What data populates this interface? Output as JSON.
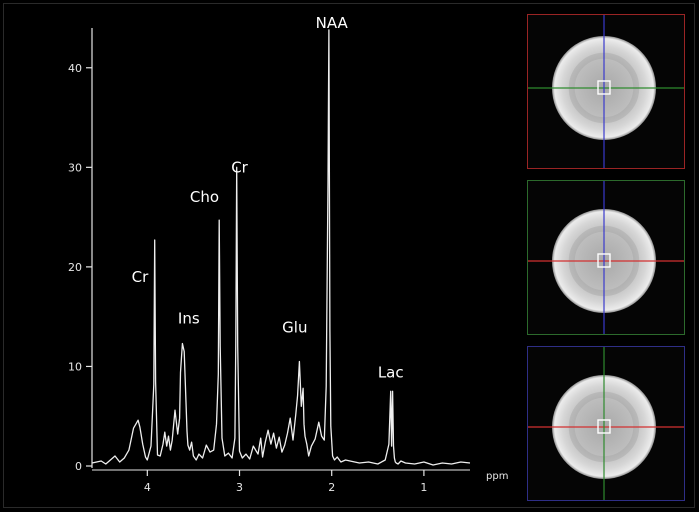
{
  "spectrum": {
    "x_unit": "ppm",
    "chart_data": {
      "type": "line",
      "xlabel": "ppm",
      "ylabel": "",
      "xlim": [
        4.6,
        0.5
      ],
      "ylim": [
        0,
        45
      ],
      "x_reversed": true,
      "x_ticks": [
        4,
        3,
        2,
        1
      ],
      "y_ticks": [
        0,
        10,
        20,
        30,
        40
      ],
      "grid": false,
      "series": [
        {
          "x": [
            4.6,
            4.5,
            4.45,
            4.4,
            4.35,
            4.3,
            4.25,
            4.2,
            4.15,
            4.1,
            4.08,
            4.05,
            4.02,
            4.0,
            3.96,
            3.93,
            3.92,
            3.91,
            3.89,
            3.86,
            3.83,
            3.81,
            3.79,
            3.77,
            3.75,
            3.73,
            3.7,
            3.67,
            3.65,
            3.64,
            3.62,
            3.6,
            3.58,
            3.57,
            3.56,
            3.54,
            3.52,
            3.5,
            3.47,
            3.44,
            3.4,
            3.36,
            3.32,
            3.28,
            3.25,
            3.23,
            3.22,
            3.21,
            3.19,
            3.16,
            3.12,
            3.08,
            3.05,
            3.04,
            3.03,
            3.02,
            3.0,
            2.97,
            2.93,
            2.89,
            2.85,
            2.8,
            2.77,
            2.75,
            2.72,
            2.69,
            2.66,
            2.63,
            2.6,
            2.57,
            2.54,
            2.51,
            2.48,
            2.45,
            2.42,
            2.39,
            2.37,
            2.35,
            2.33,
            2.31,
            2.3,
            2.29,
            2.27,
            2.25,
            2.22,
            2.18,
            2.14,
            2.11,
            2.08,
            2.06,
            2.04,
            2.03,
            2.02,
            2.01,
            1.99,
            1.97,
            1.94,
            1.9,
            1.85,
            1.8,
            1.7,
            1.6,
            1.5,
            1.42,
            1.38,
            1.36,
            1.35,
            1.34,
            1.33,
            1.32,
            1.31,
            1.3,
            1.28,
            1.25,
            1.2,
            1.1,
            1.0,
            0.9,
            0.8,
            0.7,
            0.6,
            0.5
          ],
          "y": [
            0.3,
            0.5,
            0.2,
            0.6,
            1.0,
            0.4,
            0.8,
            1.6,
            3.8,
            4.6,
            3.9,
            2.2,
            0.9,
            0.6,
            2.0,
            8.2,
            22.7,
            8.5,
            1.1,
            1.0,
            2.2,
            3.4,
            2.0,
            3.0,
            1.6,
            2.6,
            5.6,
            3.2,
            4.8,
            9.4,
            12.3,
            11.5,
            6.4,
            3.5,
            2.1,
            1.6,
            2.4,
            1.0,
            0.6,
            1.2,
            0.8,
            2.1,
            1.4,
            1.6,
            4.2,
            9.2,
            24.7,
            12.0,
            2.8,
            1.0,
            1.3,
            0.8,
            2.8,
            12.4,
            30.0,
            12.0,
            1.5,
            0.8,
            1.2,
            0.7,
            2.0,
            1.2,
            2.8,
            0.9,
            2.4,
            3.6,
            2.2,
            3.3,
            1.8,
            2.9,
            1.4,
            2.1,
            3.3,
            4.8,
            2.6,
            5.2,
            7.1,
            10.5,
            6.0,
            7.8,
            4.2,
            3.0,
            2.2,
            1.0,
            2.0,
            2.7,
            4.4,
            3.0,
            2.6,
            8.0,
            28.5,
            43.8,
            13.6,
            4.0,
            1.0,
            0.6,
            0.9,
            0.4,
            0.6,
            0.5,
            0.3,
            0.4,
            0.2,
            0.6,
            2.2,
            7.5,
            2.0,
            7.5,
            2.0,
            0.8,
            0.4,
            0.3,
            0.2,
            0.5,
            0.3,
            0.2,
            0.4,
            0.1,
            0.3,
            0.2,
            0.4,
            0.3
          ]
        }
      ],
      "annotations": [
        {
          "text": "NAA",
          "x": 2.0,
          "y": 44
        },
        {
          "text": "Cr",
          "x": 3.0,
          "y": 29.5
        },
        {
          "text": "Cho",
          "x": 3.38,
          "y": 26.5
        },
        {
          "text": "Cr",
          "x": 4.08,
          "y": 18.5
        },
        {
          "text": "Ins",
          "x": 3.55,
          "y": 14.3
        },
        {
          "text": "Glu",
          "x": 2.4,
          "y": 13.4
        },
        {
          "text": "Lac",
          "x": 1.36,
          "y": 8.9
        }
      ]
    }
  },
  "localizer": {
    "views": [
      {
        "name": "view-1",
        "border_color": "#9a2424",
        "horizontal_line_color": "#2e8a2e",
        "vertical_line_color": "#3a3acc"
      },
      {
        "name": "view-2",
        "border_color": "#2c6a2c",
        "horizontal_line_color": "#d23030",
        "vertical_line_color": "#3a3acc"
      },
      {
        "name": "view-3",
        "border_color": "#2e2e86",
        "horizontal_line_color": "#d23030",
        "vertical_line_color": "#2e8a2e"
      }
    ]
  },
  "colors": {
    "background": "#000000",
    "trace": "#eeeeee",
    "axis": "#e6e6e6"
  }
}
